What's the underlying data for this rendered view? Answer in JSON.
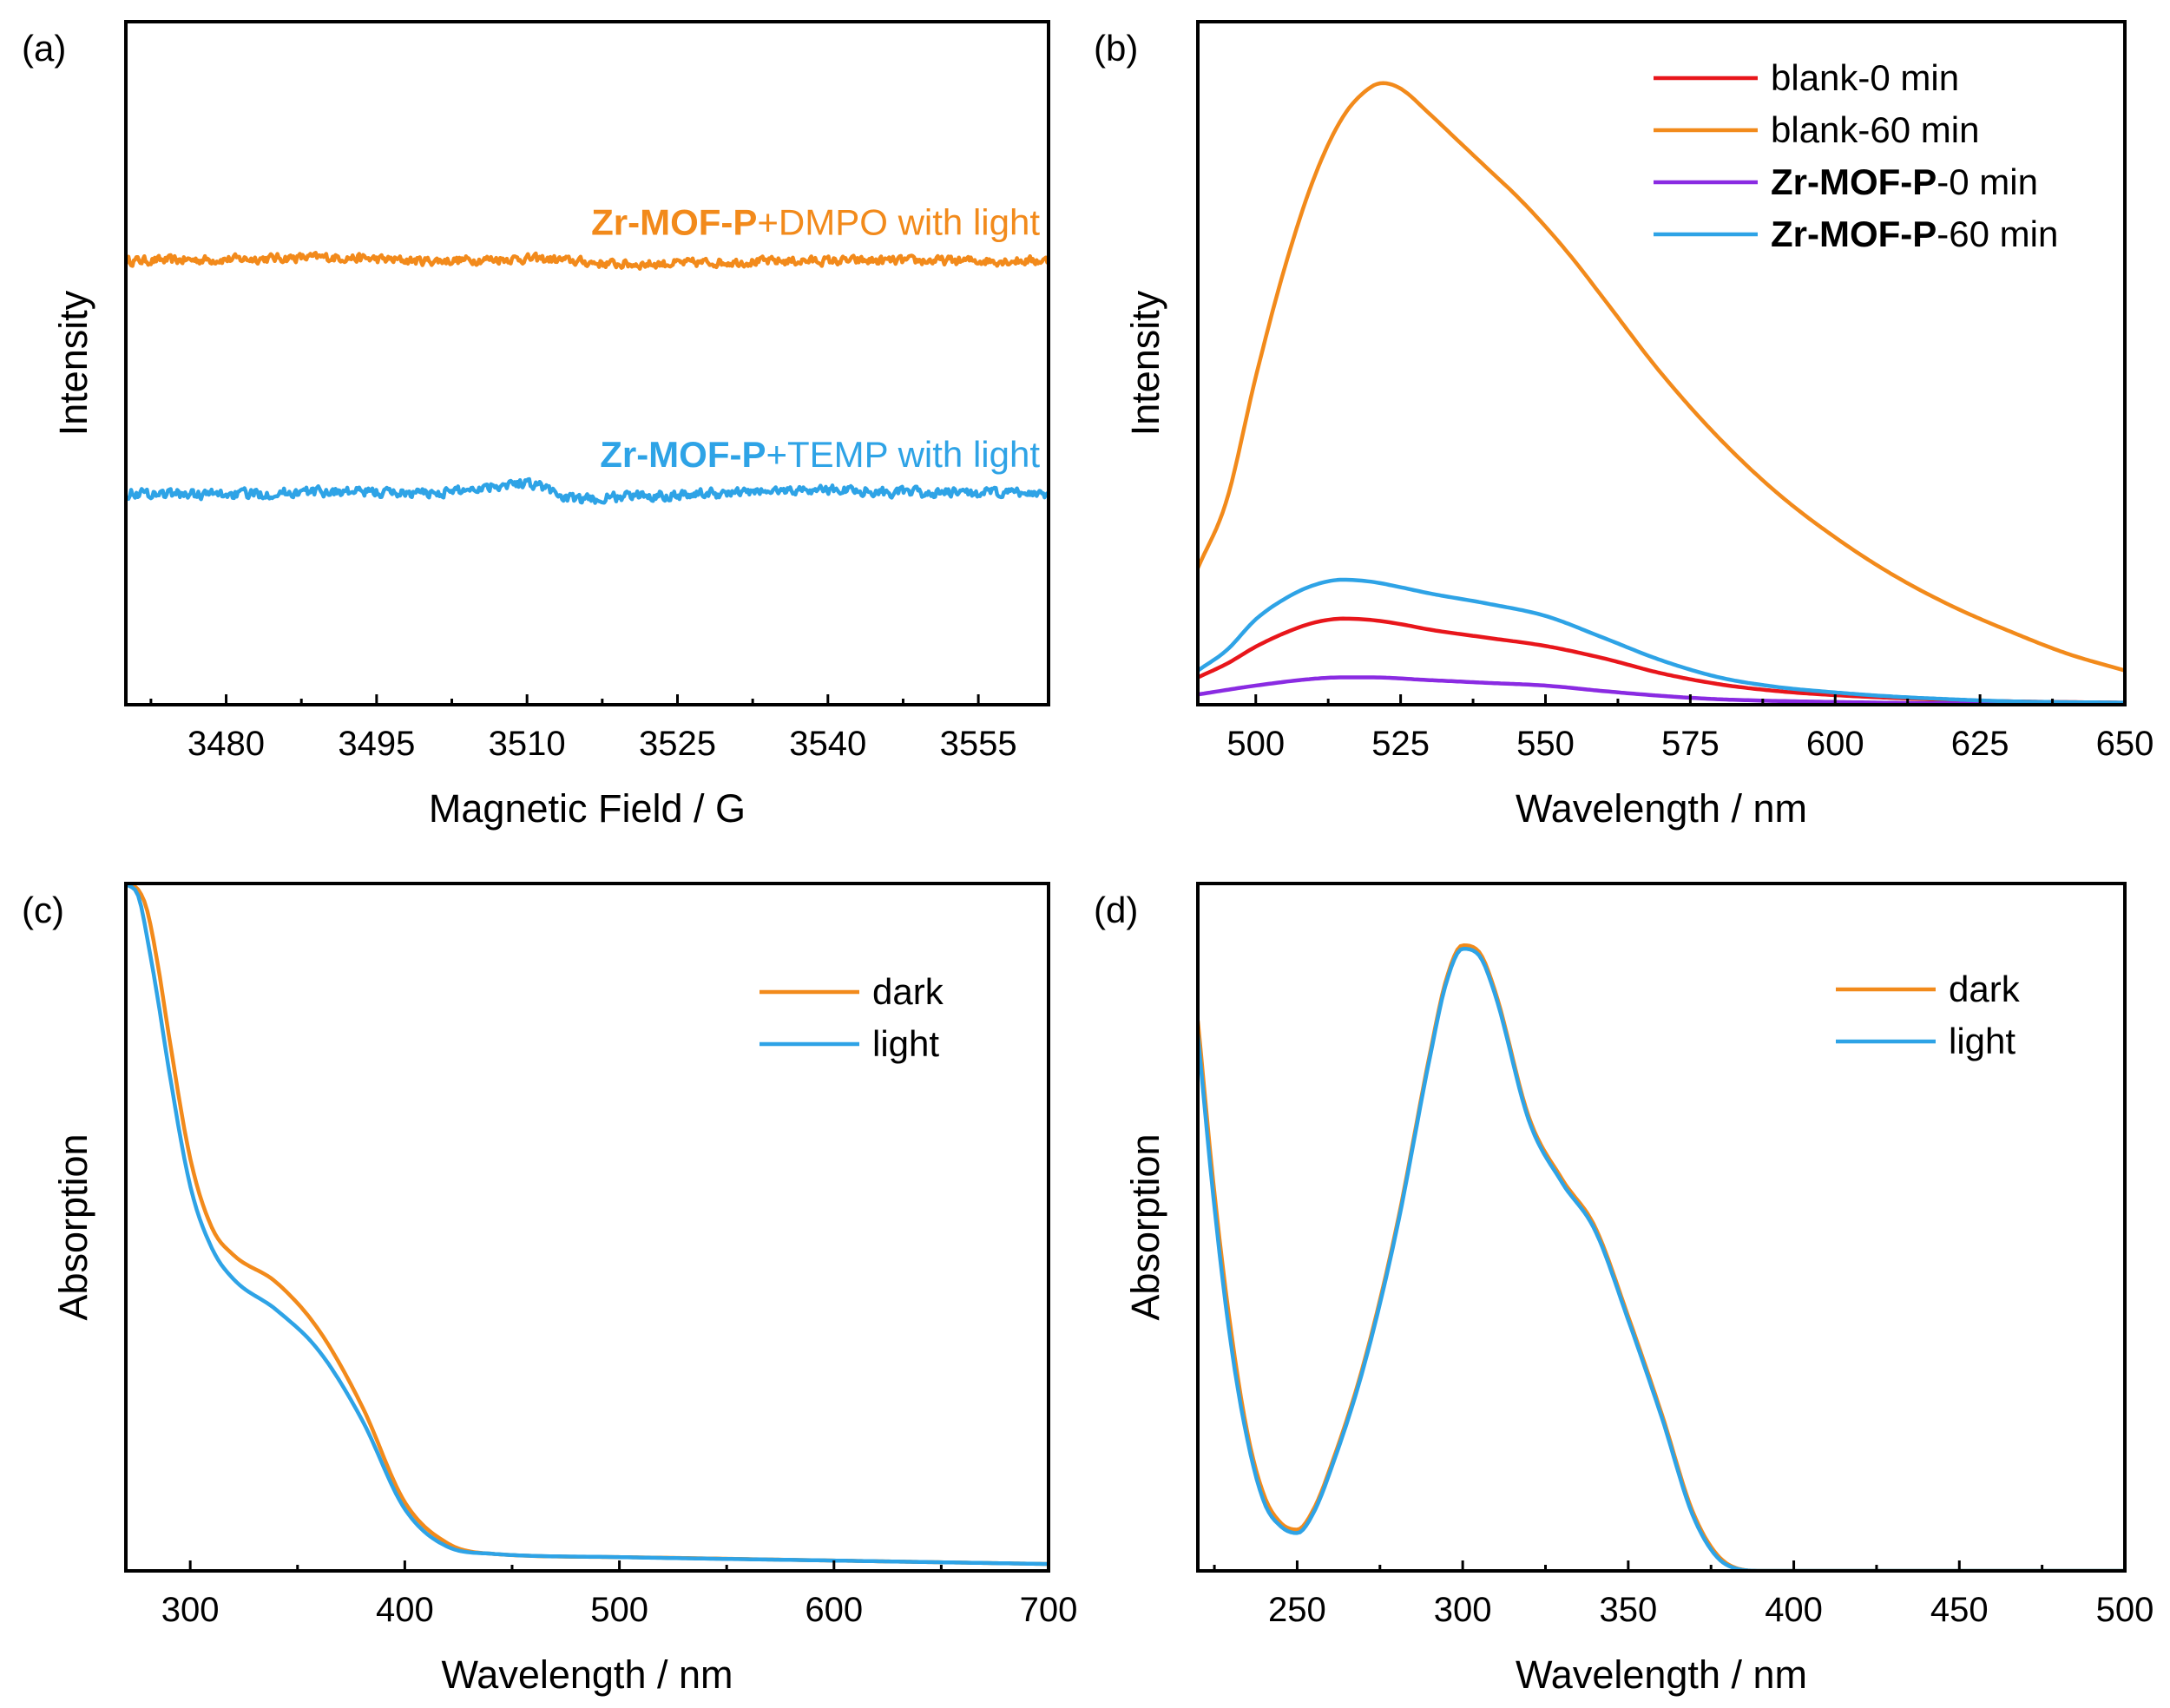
{
  "chart_data": [
    {
      "panel": "(a)",
      "type": "line",
      "xlabel": "Magnetic Field / G",
      "ylabel": "Intensity",
      "xlim": [
        3470,
        3562
      ],
      "ylim": [
        0,
        10
      ],
      "x_ticks": [
        3480,
        3495,
        3510,
        3525,
        3540,
        3555
      ],
      "x_tick_labels": [
        "3480",
        "3495",
        "3510",
        "3525",
        "3540",
        "3555"
      ],
      "y_ticks_shown": false,
      "series": [
        {
          "name": "Zr-MOF-P+DMPO with light",
          "label_bold": "Zr-MOF-P",
          "label_rest": "+DMPO with light",
          "color": "#F28A1B",
          "baseline": 6.5,
          "noise": 0.09,
          "x": [
            3470,
            3480,
            3490,
            3500,
            3510,
            3520,
            3530,
            3540,
            3550,
            3562
          ],
          "y": [
            6.5,
            6.52,
            6.55,
            6.5,
            6.53,
            6.45,
            6.48,
            6.5,
            6.5,
            6.5
          ]
        },
        {
          "name": "Zr-MOF-P+TEMP with light",
          "label_bold": "Zr-MOF-P",
          "label_rest": "+TEMP with light",
          "color": "#2EA3E6",
          "baseline": 3.1,
          "noise": 0.1,
          "x": [
            3470,
            3480,
            3490,
            3500,
            3510,
            3515,
            3520,
            3530,
            3540,
            3550,
            3562
          ],
          "y": [
            3.1,
            3.08,
            3.12,
            3.1,
            3.25,
            3.0,
            3.05,
            3.1,
            3.15,
            3.1,
            3.1
          ]
        }
      ]
    },
    {
      "panel": "(b)",
      "type": "line",
      "xlabel": "Wavelength / nm",
      "ylabel": "Intensity",
      "xlim": [
        490,
        650
      ],
      "ylim": [
        0,
        100
      ],
      "x_ticks": [
        500,
        525,
        550,
        575,
        600,
        625,
        650
      ],
      "x_tick_labels": [
        "500",
        "525",
        "550",
        "575",
        "600",
        "625",
        "650"
      ],
      "y_ticks_shown": false,
      "legend_position": "top-right",
      "series": [
        {
          "name": "blank-0 min",
          "label_bold": "",
          "label_rest": "blank-0 min",
          "color": "#E8161B",
          "x": [
            490,
            495,
            500,
            505,
            510,
            515,
            520,
            525,
            530,
            540,
            550,
            560,
            570,
            580,
            590,
            600,
            610,
            620,
            630,
            650
          ],
          "y": [
            4,
            6,
            8.5,
            10.5,
            12,
            12.6,
            12.4,
            11.8,
            11.0,
            9.8,
            8.6,
            6.8,
            4.6,
            3.0,
            2.0,
            1.4,
            1.0,
            0.7,
            0.5,
            0.3
          ]
        },
        {
          "name": "blank-60 min",
          "label_bold": "",
          "label_rest": "blank-60 min",
          "color": "#F28A1B",
          "x": [
            490,
            495,
            500,
            505,
            510,
            515,
            520,
            522,
            525,
            530,
            535,
            540,
            545,
            550,
            555,
            560,
            570,
            580,
            590,
            600,
            610,
            620,
            630,
            640,
            650
          ],
          "y": [
            20,
            30,
            48,
            64,
            77,
            86,
            90.5,
            91,
            90.2,
            86.5,
            82.5,
            78.5,
            74.5,
            70,
            65,
            59.5,
            48.5,
            39,
            31,
            24.5,
            19,
            14.5,
            10.8,
            7.5,
            5.0
          ]
        },
        {
          "name": "Zr-MOF-P-0 min",
          "label_bold": "Zr-MOF-P",
          "label_rest": "-0 min",
          "color": "#8A2BE2",
          "x": [
            490,
            500,
            510,
            515,
            520,
            530,
            540,
            550,
            560,
            570,
            580,
            600,
            620,
            650
          ],
          "y": [
            1.5,
            2.8,
            3.8,
            4.0,
            4.0,
            3.6,
            3.2,
            2.8,
            2.0,
            1.3,
            0.8,
            0.4,
            0.2,
            0.1
          ]
        },
        {
          "name": "Zr-MOF-P-60 min",
          "label_bold": "Zr-MOF-P",
          "label_rest": "-60 min",
          "color": "#2EA3E6",
          "x": [
            490,
            495,
            500,
            505,
            510,
            515,
            520,
            525,
            530,
            540,
            550,
            560,
            570,
            580,
            590,
            600,
            610,
            620,
            630,
            650
          ],
          "y": [
            5,
            8,
            12.5,
            15.5,
            17.5,
            18.3,
            18.0,
            17.2,
            16.3,
            14.8,
            13.0,
            9.8,
            6.5,
            4.0,
            2.6,
            1.8,
            1.2,
            0.8,
            0.5,
            0.3
          ]
        }
      ]
    },
    {
      "panel": "(c)",
      "type": "line",
      "xlabel": "Wavelength / nm",
      "ylabel": "Absorption",
      "xlim": [
        270,
        700
      ],
      "ylim": [
        0,
        100
      ],
      "x_ticks": [
        300,
        400,
        500,
        600,
        700
      ],
      "x_tick_labels": [
        "300",
        "400",
        "500",
        "600",
        "700"
      ],
      "y_ticks_shown": false,
      "legend_position": "top-right",
      "series": [
        {
          "name": "dark",
          "label_bold": "",
          "label_rest": "dark",
          "color": "#F28A1B",
          "x": [
            270,
            276,
            280,
            285,
            290,
            300,
            310,
            320,
            340,
            360,
            380,
            400,
            420,
            440,
            500,
            600,
            700
          ],
          "y": [
            100,
            99,
            96,
            88,
            78,
            60,
            50,
            46,
            42,
            35,
            24,
            10,
            4,
            2.5,
            2.0,
            1.5,
            1.0
          ]
        },
        {
          "name": "light",
          "label_bold": "",
          "label_rest": "light",
          "color": "#2EA3E6",
          "x": [
            270,
            276,
            280,
            285,
            290,
            300,
            310,
            320,
            340,
            360,
            380,
            400,
            420,
            440,
            500,
            600,
            700
          ],
          "y": [
            100,
            98,
            92,
            83,
            73,
            56,
            47,
            42.5,
            38,
            32,
            22,
            9,
            3.5,
            2.5,
            2.0,
            1.5,
            1.0
          ]
        }
      ]
    },
    {
      "panel": "(d)",
      "type": "line",
      "xlabel": "Wavelength / nm",
      "ylabel": "Absorption",
      "xlim": [
        220,
        500
      ],
      "ylim": [
        0,
        100
      ],
      "x_ticks": [
        250,
        300,
        350,
        400,
        450,
        500
      ],
      "x_tick_labels": [
        "250",
        "300",
        "350",
        "400",
        "450",
        "500"
      ],
      "y_ticks_shown": false,
      "legend_position": "top-right",
      "series": [
        {
          "name": "dark",
          "label_bold": "",
          "label_rest": "dark",
          "color": "#F28A1B",
          "x": [
            220,
            225,
            230,
            235,
            240,
            245,
            250,
            255,
            260,
            270,
            280,
            290,
            295,
            300,
            305,
            310,
            320,
            330,
            340,
            350,
            360,
            370,
            380,
            390,
            400,
            450,
            500
          ],
          "y": [
            80,
            55,
            35,
            20,
            11,
            7,
            6,
            9,
            15,
            30,
            50,
            75,
            86,
            91,
            90,
            84,
            66,
            57,
            50,
            37,
            23,
            8,
            1,
            0,
            0,
            0,
            0
          ]
        },
        {
          "name": "light",
          "label_bold": "",
          "label_rest": "light",
          "color": "#2EA3E6",
          "x": [
            220,
            225,
            230,
            235,
            240,
            245,
            250,
            255,
            260,
            270,
            280,
            290,
            295,
            300,
            305,
            310,
            320,
            330,
            340,
            350,
            360,
            370,
            380,
            390,
            400,
            450,
            500
          ],
          "y": [
            78,
            53,
            33,
            19,
            10,
            6.5,
            5.5,
            8.5,
            14.5,
            29.5,
            49.5,
            74.5,
            85.5,
            90.5,
            89.5,
            83.5,
            65.5,
            56.5,
            49.5,
            36.5,
            22.5,
            7.5,
            0.8,
            0,
            0,
            0,
            0
          ]
        }
      ]
    }
  ]
}
